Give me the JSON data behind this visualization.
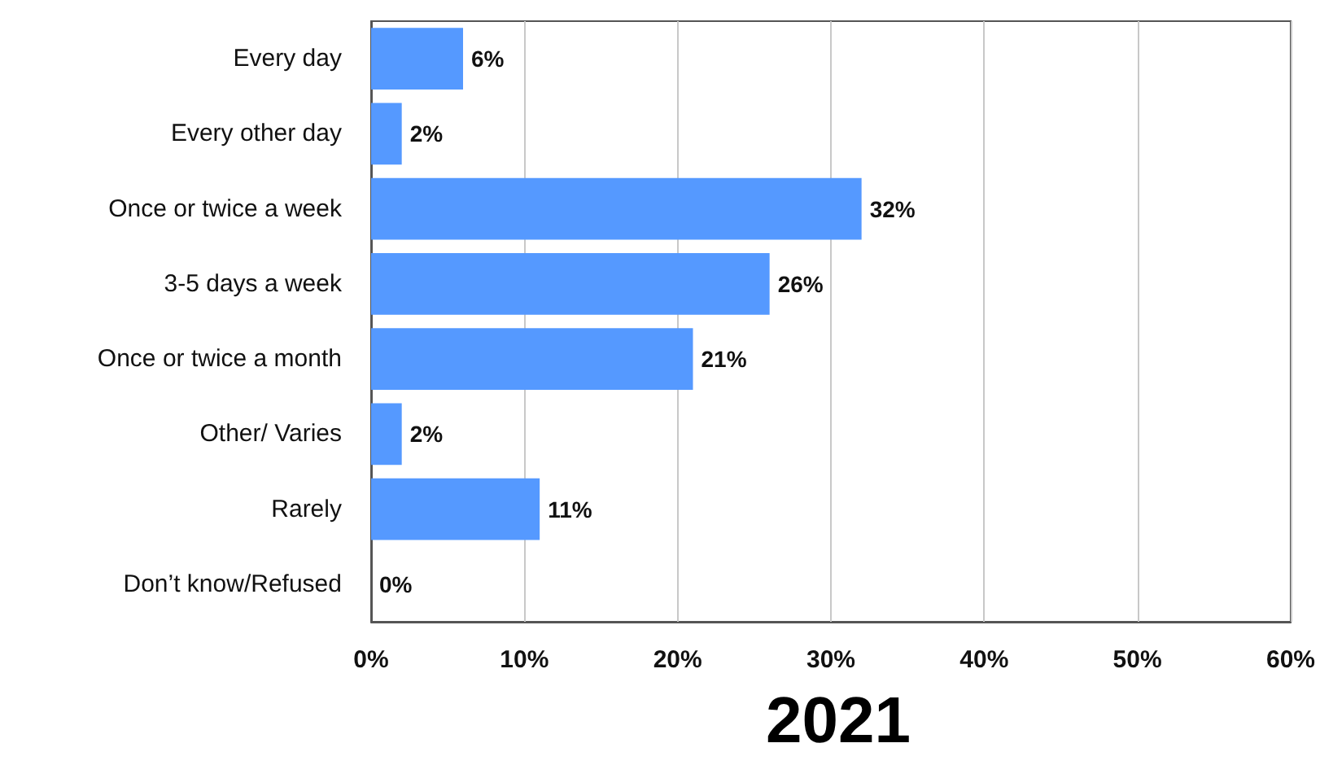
{
  "chart_data": {
    "type": "bar",
    "orientation": "horizontal",
    "title": "2021",
    "categories": [
      "Every day",
      "Every other day",
      "Once or twice a week",
      "3-5 days a week",
      "Once or twice a month",
      "Other/ Varies",
      "Rarely",
      "Don’t know/Refused"
    ],
    "values": [
      6,
      2,
      32,
      26,
      21,
      2,
      11,
      0
    ],
    "value_labels": [
      "6%",
      "2%",
      "32%",
      "26%",
      "21%",
      "2%",
      "11%",
      "0%"
    ],
    "color": "#5599ff",
    "xlim": [
      0,
      60
    ],
    "xticks": [
      {
        "value": 0,
        "label": "0%"
      },
      {
        "value": 10,
        "label": "10%"
      },
      {
        "value": 20,
        "label": "20%"
      },
      {
        "value": 30,
        "label": "30%"
      },
      {
        "value": 40,
        "label": "40%"
      },
      {
        "value": 50,
        "label": "50%"
      },
      {
        "value": 60,
        "label": "60%"
      }
    ],
    "grid": "x"
  }
}
